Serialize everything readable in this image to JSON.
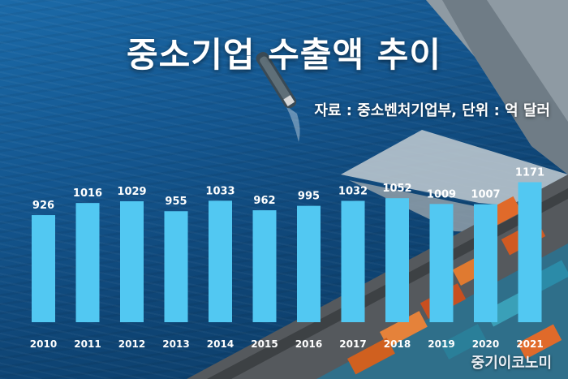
{
  "title": "중소기업 수출액 추이",
  "source_note": "자료 : 중소벤처기업부, 단위 : 억 달러",
  "brand": "중기이코노미",
  "colors": {
    "bar": "#52c8f2",
    "text": "#ffffff"
  },
  "chart_data": {
    "type": "bar",
    "categories": [
      "2010",
      "2011",
      "2012",
      "2013",
      "2014",
      "2015",
      "2016",
      "2017",
      "2018",
      "2019",
      "2020",
      "2021"
    ],
    "values": [
      926,
      1016,
      1029,
      955,
      1033,
      962,
      995,
      1032,
      1052,
      1009,
      1007,
      1171
    ],
    "unit": "억 달러",
    "grid": false,
    "legend": "none"
  }
}
